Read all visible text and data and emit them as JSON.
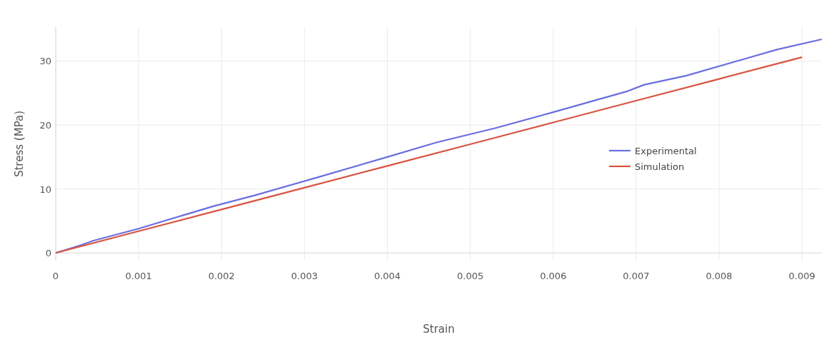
{
  "chart_data": {
    "type": "line",
    "xlabel": "Strain",
    "ylabel": "Stress (MPa)",
    "xlim": [
      0,
      0.00924
    ],
    "ylim": [
      -1.2,
      35.3
    ],
    "xticks": [
      0,
      0.001,
      0.002,
      0.003,
      0.004,
      0.005,
      0.006,
      0.007,
      0.008,
      0.009
    ],
    "yticks": [
      0,
      10,
      20,
      30
    ],
    "grid": true,
    "legend": "right",
    "marker": "none",
    "line_style": "solid",
    "series": [
      {
        "name": "Experimental",
        "color": "#6a6ee0",
        "x": [
          0,
          0.0003,
          0.00045,
          0.001,
          0.0019,
          0.0024,
          0.0031,
          0.004,
          0.0046,
          0.0053,
          0.006,
          0.0069,
          0.0071,
          0.0076,
          0.0083,
          0.0087,
          0.00924
        ],
        "values": [
          0,
          1.2,
          1.9,
          3.8,
          7.3,
          9.0,
          11.6,
          15.0,
          17.3,
          19.5,
          22.0,
          25.3,
          26.3,
          27.7,
          30.3,
          31.8,
          33.4
        ]
      },
      {
        "name": "Simulation",
        "color": "#d9533f",
        "x": [
          0,
          0.001,
          0.002,
          0.003,
          0.004,
          0.005,
          0.006,
          0.007,
          0.008,
          0.009
        ],
        "values": [
          0,
          3.4,
          6.8,
          10.2,
          13.6,
          17.0,
          20.4,
          23.8,
          27.2,
          30.6
        ]
      }
    ]
  }
}
